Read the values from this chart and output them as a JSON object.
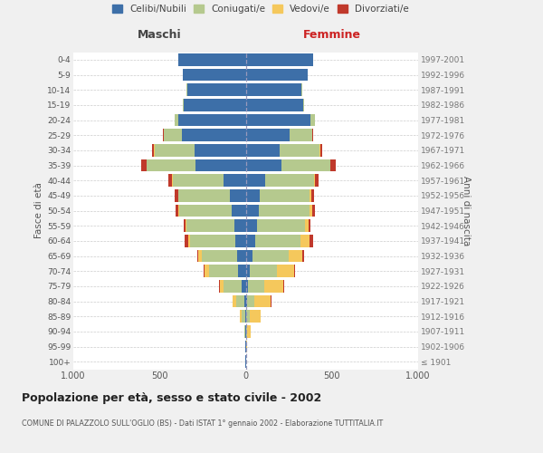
{
  "age_groups": [
    "100+",
    "95-99",
    "90-94",
    "85-89",
    "80-84",
    "75-79",
    "70-74",
    "65-69",
    "60-64",
    "55-59",
    "50-54",
    "45-49",
    "40-44",
    "35-39",
    "30-34",
    "25-29",
    "20-24",
    "15-19",
    "10-14",
    "5-9",
    "0-4"
  ],
  "birth_years": [
    "≤ 1901",
    "1902-1906",
    "1907-1911",
    "1912-1916",
    "1917-1921",
    "1922-1926",
    "1927-1931",
    "1932-1936",
    "1937-1941",
    "1942-1946",
    "1947-1951",
    "1952-1956",
    "1957-1961",
    "1962-1966",
    "1967-1971",
    "1972-1976",
    "1977-1981",
    "1982-1986",
    "1987-1991",
    "1992-1996",
    "1997-2001"
  ],
  "males": {
    "celibi": [
      2,
      2,
      3,
      5,
      10,
      25,
      45,
      50,
      60,
      65,
      80,
      90,
      130,
      290,
      295,
      370,
      390,
      360,
      340,
      365,
      390
    ],
    "coniugati": [
      1,
      2,
      5,
      20,
      45,
      105,
      165,
      205,
      265,
      280,
      305,
      300,
      295,
      285,
      235,
      105,
      20,
      5,
      2,
      0,
      0
    ],
    "vedovi": [
      0,
      0,
      2,
      10,
      20,
      20,
      30,
      20,
      10,
      5,
      5,
      3,
      2,
      2,
      2,
      1,
      0,
      0,
      0,
      0,
      0
    ],
    "divorziati": [
      0,
      0,
      0,
      0,
      2,
      3,
      5,
      8,
      18,
      10,
      18,
      18,
      20,
      30,
      10,
      5,
      2,
      0,
      0,
      0,
      0
    ]
  },
  "females": {
    "nubili": [
      2,
      2,
      5,
      5,
      10,
      15,
      25,
      40,
      55,
      65,
      75,
      80,
      115,
      205,
      195,
      255,
      375,
      335,
      325,
      360,
      390
    ],
    "coniugate": [
      0,
      2,
      5,
      20,
      40,
      95,
      155,
      210,
      265,
      280,
      295,
      290,
      280,
      285,
      235,
      130,
      25,
      5,
      2,
      0,
      0
    ],
    "vedove": [
      1,
      5,
      20,
      60,
      95,
      110,
      100,
      80,
      50,
      20,
      15,
      8,
      5,
      3,
      2,
      1,
      0,
      0,
      0,
      0,
      0
    ],
    "divorziate": [
      0,
      0,
      0,
      2,
      3,
      5,
      8,
      10,
      20,
      12,
      18,
      20,
      20,
      30,
      10,
      5,
      2,
      0,
      0,
      0,
      0
    ]
  },
  "colors": {
    "celibi": "#3d6fa8",
    "coniugati": "#b5c98e",
    "vedovi": "#f5c85c",
    "divorziati": "#c0392b"
  },
  "xlim": 1000,
  "title": "Popolazione per età, sesso e stato civile - 2002",
  "subtitle": "COMUNE DI PALAZZOLO SULL'OGLIO (BS) - Dati ISTAT 1° gennaio 2002 - Elaborazione TUTTITALIA.IT",
  "ylabel_left": "Fasce di età",
  "ylabel_right": "Anni di nascita",
  "xlabel_left": "Maschi",
  "xlabel_right": "Femmine",
  "legend_labels": [
    "Celibi/Nubili",
    "Coniugati/e",
    "Vedovi/e",
    "Divorziati/e"
  ],
  "bg_color": "#f0f0f0",
  "plot_bg": "#ffffff"
}
